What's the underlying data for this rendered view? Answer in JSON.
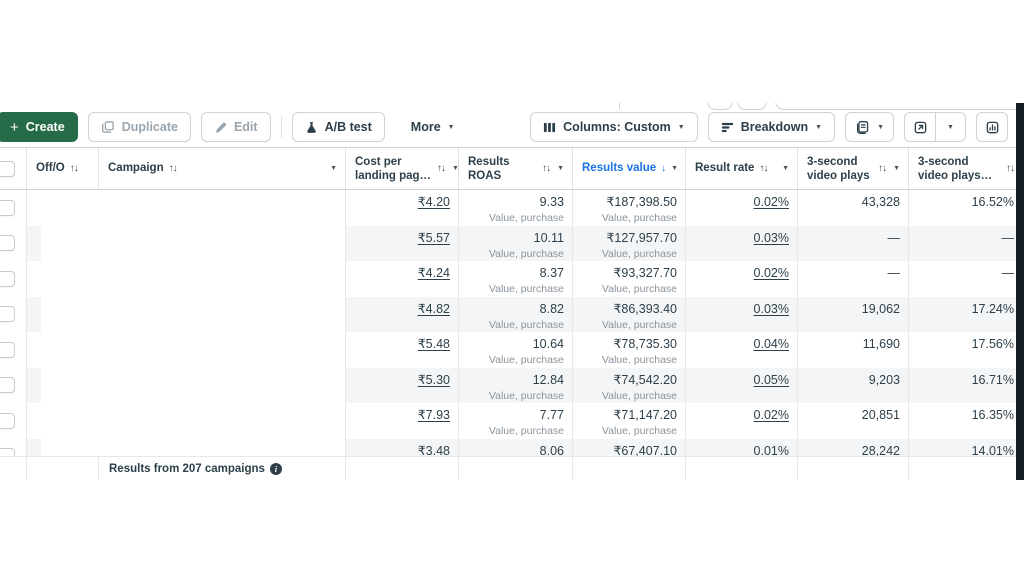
{
  "colors": {
    "green": "#266b49",
    "text": "#2d3f4a",
    "muted": "#8a949e",
    "disabled": "#9aa4ac",
    "blue": "#1b74e4",
    "stripe": "#f4f5f6",
    "border": "#ccd3d9",
    "strip-dark": "#141c24"
  },
  "icons": {
    "plus": "+",
    "caret": "▼",
    "sort_both": "↑↓",
    "sort_desc": "↓",
    "dash": "—",
    "info": "i"
  },
  "toolbar": {
    "create_label": "Create",
    "duplicate_label": "Duplicate",
    "edit_label": "Edit",
    "ab_test_label": "A/B test",
    "more_label": "More",
    "columns_label": "Columns: Custom",
    "breakdown_label": "Breakdown"
  },
  "table": {
    "columns": [
      {
        "key": "onoff",
        "lines": [
          "Off/O"
        ],
        "sort": "sort_both",
        "inline": true,
        "caret": false,
        "active": false
      },
      {
        "key": "campaign",
        "lines": [
          "Campaign"
        ],
        "sort": "sort_both",
        "inline": true,
        "caret": true,
        "active": false
      },
      {
        "key": "cost",
        "lines": [
          "Cost per",
          "landing pag…"
        ],
        "sort": "sort_both",
        "inline": false,
        "caret": true,
        "active": false
      },
      {
        "key": "roas",
        "lines": [
          "Results",
          "ROAS"
        ],
        "sort": "sort_both",
        "inline": false,
        "caret": true,
        "active": false
      },
      {
        "key": "value",
        "lines": [
          "Results value"
        ],
        "sort": "sort_desc",
        "inline": true,
        "caret": true,
        "active": true
      },
      {
        "key": "rate",
        "lines": [
          "Result rate"
        ],
        "sort": "sort_both",
        "inline": true,
        "caret": true,
        "active": false
      },
      {
        "key": "plays",
        "lines": [
          "3-second",
          "video plays"
        ],
        "sort": "sort_both",
        "inline": false,
        "caret": true,
        "active": false
      },
      {
        "key": "plays2",
        "lines": [
          "3-second",
          "video plays…"
        ],
        "sort": "sort_both",
        "inline": false,
        "caret": false,
        "active": false
      }
    ],
    "subtitle": "Value, purchase",
    "rows": [
      {
        "cost": "₹4.20",
        "roas": "9.33",
        "value": "₹187,398.50",
        "rate": "0.02%",
        "plays": "43,328",
        "plays2": "16.52%"
      },
      {
        "cost": "₹5.57",
        "roas": "10.11",
        "value": "₹127,957.70",
        "rate": "0.03%",
        "plays": "—",
        "plays2": "—"
      },
      {
        "cost": "₹4.24",
        "roas": "8.37",
        "value": "₹93,327.70",
        "rate": "0.02%",
        "plays": "—",
        "plays2": "—"
      },
      {
        "cost": "₹4.82",
        "roas": "8.82",
        "value": "₹86,393.40",
        "rate": "0.03%",
        "plays": "19,062",
        "plays2": "17.24%"
      },
      {
        "cost": "₹5.48",
        "roas": "10.64",
        "value": "₹78,735.30",
        "rate": "0.04%",
        "plays": "11,690",
        "plays2": "17.56%"
      },
      {
        "cost": "₹5.30",
        "roas": "12.84",
        "value": "₹74,542.20",
        "rate": "0.05%",
        "plays": "9,203",
        "plays2": "16.71%"
      },
      {
        "cost": "₹7.93",
        "roas": "7.77",
        "value": "₹71,147.20",
        "rate": "0.02%",
        "plays": "20,851",
        "plays2": "16.35%"
      },
      {
        "cost": "₹3.48",
        "roas": "8.06",
        "value": "₹67,407.10",
        "rate": "0.01%",
        "plays": "28,242",
        "plays2": "14.01%"
      }
    ],
    "footer_text": "Results from 207 campaigns"
  }
}
